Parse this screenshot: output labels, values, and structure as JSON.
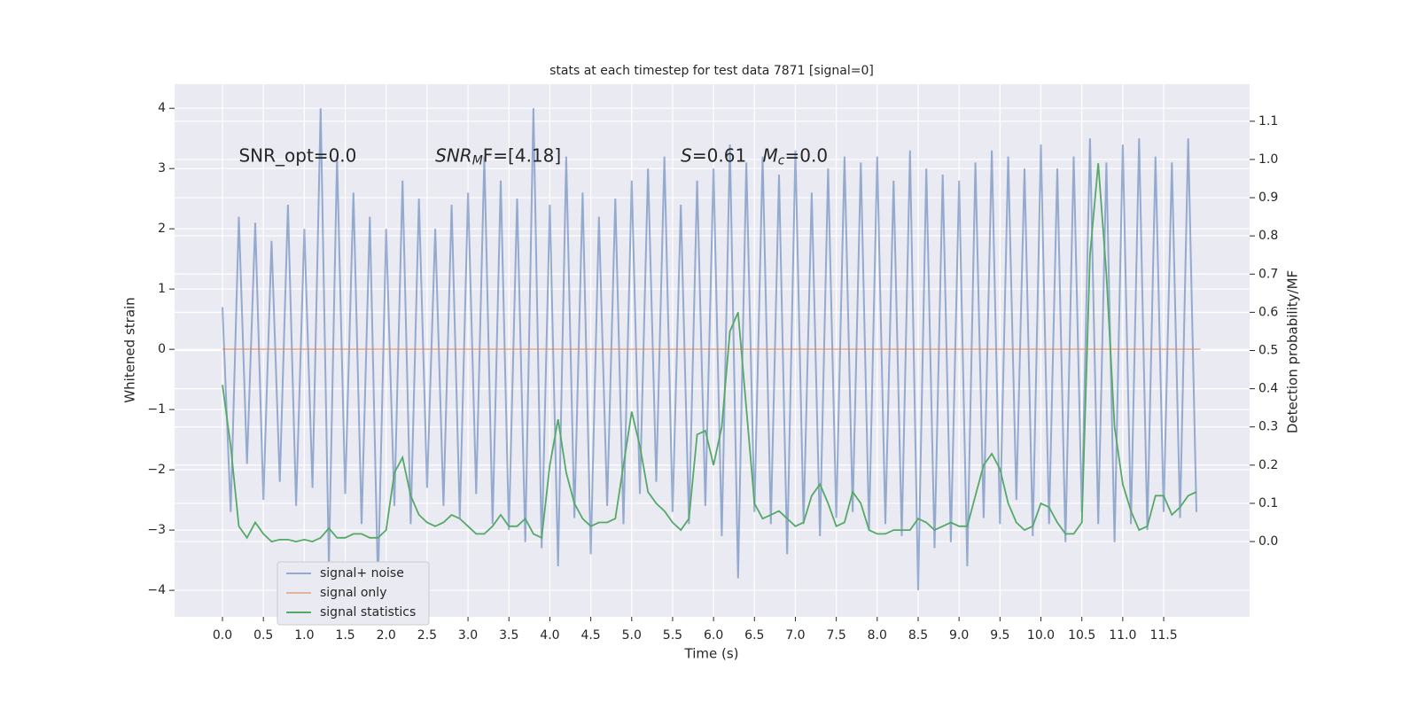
{
  "chart_data": {
    "type": "line",
    "title": "stats at each timestep for test data 7871 [signal=0]",
    "xlabel": "Time (s)",
    "ylabel": "Whitened strain",
    "y2label": "Detection probability/MF",
    "xlim": [
      -0.585,
      12.55
    ],
    "ylim": [
      -4.44,
      4.4
    ],
    "y2lim": [
      -0.197,
      1.197
    ],
    "xticks": [
      {
        "value": 0,
        "label": "0.0"
      },
      0.5,
      {
        "value": 1,
        "label": "1.0"
      },
      1.5,
      {
        "value": 2,
        "label": "2.0"
      },
      2.5,
      {
        "value": 3,
        "label": "3.0"
      },
      3.5,
      {
        "value": 4,
        "label": "4.0"
      },
      4.5,
      {
        "value": 5,
        "label": "5.0"
      },
      5.5,
      {
        "value": 6,
        "label": "6.0"
      },
      6.5,
      {
        "value": 7,
        "label": "7.0"
      },
      7.5,
      {
        "value": 8,
        "label": "8.0"
      },
      8.5,
      {
        "value": 9,
        "label": "9.0"
      },
      9.5,
      {
        "value": 10,
        "label": "10.0"
      },
      10.5,
      {
        "value": 11,
        "label": "11.0"
      },
      11.5
    ],
    "yticks": [
      {
        "value": -4,
        "label": "−4"
      },
      {
        "value": -3,
        "label": "−3"
      },
      {
        "value": -2,
        "label": "−2"
      },
      {
        "value": -1,
        "label": "−1"
      },
      0,
      1,
      2,
      3,
      4
    ],
    "y2ticks": [
      {
        "value": 0,
        "label": "0.0"
      },
      0.1,
      0.2,
      0.3,
      0.4,
      0.5,
      0.6,
      0.7,
      0.8,
      0.9,
      {
        "value": 1,
        "label": "1.0"
      },
      1.1
    ],
    "grid": true,
    "legend": "lower left",
    "annotations": [
      {
        "x": 0.2,
        "y": 3.2,
        "parts": [
          {
            "text": "SNR_opt=0.0",
            "italic": false,
            "sub": false
          }
        ]
      },
      {
        "x": 2.6,
        "y": 3.2,
        "parts": [
          {
            "text": "SNR",
            "italic": true,
            "sub": false
          },
          {
            "text": "M",
            "italic": true,
            "sub": true
          },
          {
            "text": "F=[4.18]",
            "italic": false,
            "sub": false
          }
        ]
      },
      {
        "x": 5.6,
        "y": 3.2,
        "parts": [
          {
            "text": "S",
            "italic": true,
            "sub": false
          },
          {
            "text": "=0.61",
            "italic": false,
            "sub": false
          }
        ]
      },
      {
        "x": 6.6,
        "y": 3.2,
        "parts": [
          {
            "text": "M",
            "italic": true,
            "sub": false
          },
          {
            "text": "c",
            "italic": true,
            "sub": true
          },
          {
            "text": "=0.0",
            "italic": false,
            "sub": false
          }
        ]
      }
    ],
    "x": [
      0,
      0.1,
      0.2,
      0.3,
      0.4,
      0.5,
      0.6,
      0.7,
      0.8,
      0.9,
      1,
      1.1,
      1.2,
      1.3,
      1.4,
      1.5,
      1.6,
      1.7,
      1.8,
      1.9,
      2,
      2.1,
      2.2,
      2.3,
      2.4,
      2.5,
      2.6,
      2.7,
      2.8,
      2.9,
      3,
      3.1,
      3.2,
      3.3,
      3.4,
      3.5,
      3.6,
      3.7,
      3.8,
      3.9,
      4,
      4.1,
      4.2,
      4.3,
      4.4,
      4.5,
      4.6,
      4.7,
      4.8,
      4.9,
      5,
      5.1,
      5.2,
      5.3,
      5.4,
      5.5,
      5.6,
      5.7,
      5.8,
      5.9,
      6,
      6.1,
      6.2,
      6.3,
      6.4,
      6.5,
      6.6,
      6.7,
      6.8,
      6.9,
      7,
      7.1,
      7.2,
      7.3,
      7.4,
      7.5,
      7.6,
      7.7,
      7.8,
      7.9,
      8,
      8.1,
      8.2,
      8.3,
      8.4,
      8.5,
      8.6,
      8.7,
      8.8,
      8.9,
      9,
      9.1,
      9.2,
      9.3,
      9.4,
      9.5,
      9.6,
      9.7,
      9.8,
      9.9,
      10,
      10.1,
      10.2,
      10.3,
      10.4,
      10.5,
      10.6,
      10.7,
      10.8,
      10.9,
      11,
      11.1,
      11.2,
      11.3,
      11.4,
      11.5,
      11.6,
      11.7,
      11.8,
      11.9
    ],
    "series": [
      {
        "name": "signal+ noise",
        "color": "#4c72b0",
        "alpha": 0.55,
        "axis": "y",
        "values": [
          0.7,
          -2.7,
          2.2,
          -1.9,
          2.1,
          -2.5,
          1.8,
          -2.2,
          2.4,
          -2.6,
          2.0,
          -2.3,
          4.0,
          -3.6,
          3.2,
          -2.4,
          2.6,
          -2.9,
          2.2,
          -3.9,
          2.0,
          -2.6,
          2.8,
          -2.9,
          2.5,
          -2.3,
          2.0,
          -2.6,
          2.4,
          -2.8,
          2.6,
          -2.4,
          3.2,
          -2.9,
          2.8,
          -3.0,
          2.5,
          -3.2,
          4.0,
          -3.3,
          2.4,
          -3.6,
          3.2,
          -2.8,
          2.6,
          -3.4,
          2.2,
          -2.6,
          2.5,
          -2.9,
          2.8,
          -2.4,
          3.0,
          -2.2,
          3.2,
          -2.7,
          2.4,
          -2.9,
          2.8,
          -2.6,
          3.0,
          -3.1,
          3.4,
          -3.8,
          3.1,
          -2.7,
          3.2,
          -2.9,
          2.9,
          -3.4,
          3.3,
          -2.9,
          2.6,
          -3.1,
          3.0,
          -2.8,
          3.2,
          -2.7,
          3.1,
          -3.0,
          3.2,
          -2.9,
          2.8,
          -3.1,
          3.3,
          -4.0,
          3.0,
          -3.3,
          2.9,
          -3.2,
          2.8,
          -3.6,
          3.1,
          -2.8,
          3.3,
          -2.9,
          3.2,
          -2.5,
          3.0,
          -3.1,
          3.4,
          -2.9,
          3.0,
          -3.2,
          3.2,
          -2.7,
          3.5,
          -2.9,
          3.1,
          -3.2,
          3.4,
          -2.9,
          3.5,
          -3.0,
          3.2,
          -2.7,
          3.1,
          -2.8,
          3.5,
          -2.7
        ]
      },
      {
        "name": "signal only",
        "color": "#dd8452",
        "alpha": 0.55,
        "axis": "y",
        "x": [
          0,
          11.95
        ],
        "values": [
          0,
          0
        ]
      },
      {
        "name": "signal statistics",
        "color": "#55a868",
        "alpha": 1,
        "axis": "y2",
        "values": [
          0.41,
          0.25,
          0.04,
          0.01,
          0.05,
          0.02,
          0.0,
          0.005,
          0.005,
          0.0,
          0.005,
          0.0,
          0.01,
          0.035,
          0.01,
          0.01,
          0.02,
          0.02,
          0.01,
          0.01,
          0.03,
          0.18,
          0.22,
          0.12,
          0.07,
          0.05,
          0.04,
          0.05,
          0.07,
          0.06,
          0.04,
          0.02,
          0.02,
          0.04,
          0.07,
          0.04,
          0.04,
          0.06,
          0.02,
          0.01,
          0.2,
          0.32,
          0.18,
          0.1,
          0.06,
          0.04,
          0.05,
          0.05,
          0.06,
          0.2,
          0.34,
          0.25,
          0.13,
          0.1,
          0.08,
          0.05,
          0.03,
          0.06,
          0.28,
          0.29,
          0.2,
          0.3,
          0.55,
          0.6,
          0.35,
          0.1,
          0.06,
          0.07,
          0.08,
          0.06,
          0.04,
          0.05,
          0.12,
          0.15,
          0.1,
          0.04,
          0.05,
          0.13,
          0.1,
          0.03,
          0.02,
          0.02,
          0.03,
          0.03,
          0.03,
          0.06,
          0.05,
          0.03,
          0.04,
          0.05,
          0.04,
          0.04,
          0.12,
          0.2,
          0.23,
          0.19,
          0.1,
          0.05,
          0.03,
          0.04,
          0.1,
          0.09,
          0.05,
          0.02,
          0.02,
          0.05,
          0.75,
          0.99,
          0.7,
          0.3,
          0.15,
          0.08,
          0.03,
          0.04,
          0.12,
          0.12,
          0.07,
          0.09,
          0.12,
          0.13
        ]
      }
    ]
  }
}
